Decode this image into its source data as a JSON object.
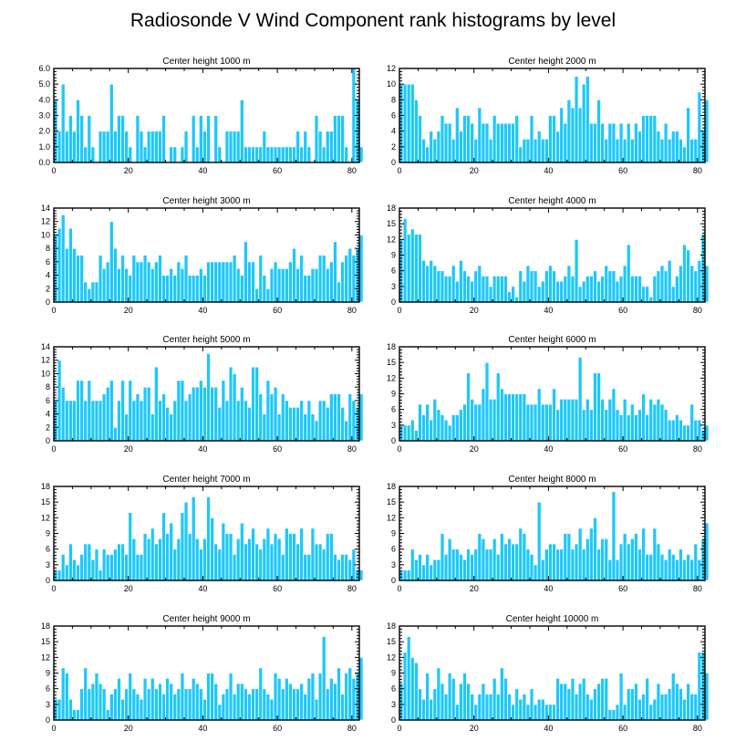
{
  "figure": {
    "title": "Radiosonde V Wind Component rank histograms by level"
  },
  "colors": {
    "bar_fill": "#1ec8f8",
    "bar_edge": "#ffffff",
    "axis": "#000000"
  },
  "chart_data": [
    {
      "type": "bar",
      "title": "Center height 1000 m",
      "xlabel": "",
      "ylabel": "",
      "xlim": [
        0,
        82
      ],
      "ylim": [
        0,
        6
      ],
      "xticks": [
        0,
        20,
        40,
        60,
        80
      ],
      "xtick_labels": [
        "0",
        "20",
        "40",
        "60",
        "80"
      ],
      "yticks": [
        0,
        1,
        2,
        3,
        4,
        5,
        6
      ],
      "ytick_labels": [
        "0.0",
        "1.0",
        "2.0",
        "3.0",
        "4.0",
        "5.0",
        "6.0"
      ],
      "values": [
        4,
        2,
        5,
        2,
        3,
        2,
        4,
        3,
        1,
        3,
        1,
        0,
        2,
        2,
        2,
        5,
        2,
        3,
        3,
        2,
        1,
        0,
        3,
        2,
        1,
        2,
        2,
        2,
        2,
        3,
        0,
        1,
        1,
        0,
        1,
        2,
        0,
        3,
        1,
        3,
        2,
        3,
        0,
        3,
        1,
        0,
        2,
        2,
        2,
        2,
        4,
        1,
        1,
        1,
        1,
        1,
        2,
        1,
        1,
        1,
        1,
        1,
        1,
        1,
        1,
        2,
        1,
        2,
        1,
        0,
        3,
        2,
        1,
        2,
        2,
        3,
        3,
        3,
        1,
        0,
        6,
        4,
        1
      ]
    },
    {
      "type": "bar",
      "title": "Center height 2000 m",
      "xlabel": "",
      "ylabel": "",
      "xlim": [
        0,
        82
      ],
      "ylim": [
        0,
        12
      ],
      "xticks": [
        0,
        20,
        40,
        60,
        80
      ],
      "xtick_labels": [
        "0",
        "20",
        "40",
        "60",
        "80"
      ],
      "yticks": [
        0,
        2,
        4,
        6,
        8,
        10,
        12
      ],
      "ytick_labels": [
        "0",
        "2",
        "4",
        "6",
        "8",
        "10",
        "12"
      ],
      "values": [
        10,
        10,
        10,
        10,
        8,
        6,
        3,
        2,
        4,
        3,
        4,
        6,
        5,
        5,
        3,
        7,
        4,
        6,
        6,
        5,
        3,
        7,
        5,
        5,
        3,
        6,
        5,
        5,
        5,
        5,
        5,
        6,
        2,
        3,
        3,
        6,
        3,
        4,
        3,
        3,
        6,
        6,
        4,
        7,
        5,
        8,
        7,
        11,
        7,
        10,
        11,
        5,
        5,
        8,
        5,
        3,
        5,
        5,
        3,
        5,
        3,
        5,
        3,
        5,
        4,
        6,
        6,
        6,
        6,
        4,
        3,
        5,
        3,
        4,
        4,
        3,
        2,
        7,
        3,
        3,
        9,
        4,
        8
      ]
    },
    {
      "type": "bar",
      "title": "Center height 3000 m",
      "xlabel": "",
      "ylabel": "",
      "xlim": [
        0,
        82
      ],
      "ylim": [
        0,
        14
      ],
      "xticks": [
        0,
        20,
        40,
        60,
        80
      ],
      "xtick_labels": [
        "0",
        "20",
        "40",
        "60",
        "80"
      ],
      "yticks": [
        0,
        2,
        4,
        6,
        8,
        10,
        12,
        14
      ],
      "ytick_labels": [
        "0",
        "2",
        "4",
        "6",
        "8",
        "10",
        "12",
        "14"
      ],
      "values": [
        10,
        11,
        13,
        8,
        11,
        8,
        7,
        7,
        3,
        2,
        3,
        3,
        7,
        5,
        6,
        12,
        8,
        5,
        7,
        5,
        4,
        7,
        6,
        6,
        7,
        6,
        5,
        6,
        7,
        4,
        4,
        5,
        4,
        6,
        5,
        7,
        4,
        4,
        4,
        5,
        4,
        6,
        6,
        6,
        6,
        6,
        6,
        6,
        7,
        5,
        4,
        9,
        6,
        6,
        2,
        7,
        4,
        2,
        5,
        6,
        5,
        5,
        5,
        6,
        8,
        5,
        7,
        4,
        4,
        5,
        5,
        7,
        7,
        5,
        6,
        9,
        3,
        6,
        7,
        8,
        7,
        8,
        10
      ]
    },
    {
      "type": "bar",
      "title": "Center height 4000 m",
      "xlabel": "",
      "ylabel": "",
      "xlim": [
        0,
        82
      ],
      "ylim": [
        0,
        18
      ],
      "xticks": [
        0,
        20,
        40,
        60,
        80
      ],
      "xtick_labels": [
        "0",
        "20",
        "40",
        "60",
        "80"
      ],
      "yticks": [
        0,
        3,
        6,
        9,
        12,
        15,
        18
      ],
      "ytick_labels": [
        "0",
        "3",
        "6",
        "9",
        "12",
        "15",
        "18"
      ],
      "values": [
        12,
        16,
        13,
        14,
        13,
        13,
        8,
        7,
        8,
        7,
        6,
        6,
        5,
        5,
        7,
        4,
        8,
        6,
        5,
        4,
        6,
        7,
        5,
        5,
        3,
        5,
        5,
        5,
        5,
        2,
        3,
        1,
        6,
        4,
        7,
        6,
        6,
        3,
        4,
        6,
        7,
        6,
        4,
        4,
        5,
        7,
        5,
        12,
        3,
        4,
        5,
        5,
        6,
        4,
        5,
        7,
        6,
        6,
        4,
        5,
        7,
        11,
        5,
        5,
        5,
        3,
        3,
        1,
        5,
        6,
        7,
        6,
        8,
        3,
        5,
        7,
        11,
        10,
        7,
        6,
        8,
        13,
        7
      ]
    },
    {
      "type": "bar",
      "title": "Center height 5000 m",
      "xlabel": "",
      "ylabel": "",
      "xlim": [
        0,
        82
      ],
      "ylim": [
        0,
        14
      ],
      "xticks": [
        0,
        20,
        40,
        60,
        80
      ],
      "xtick_labels": [
        "0",
        "20",
        "40",
        "60",
        "80"
      ],
      "yticks": [
        0,
        2,
        4,
        6,
        8,
        10,
        12,
        14
      ],
      "ytick_labels": [
        "0",
        "2",
        "4",
        "6",
        "8",
        "10",
        "12",
        "14"
      ],
      "values": [
        6,
        12,
        8,
        6,
        6,
        6,
        9,
        9,
        6,
        9,
        6,
        6,
        6,
        7,
        8,
        9,
        2,
        6,
        9,
        4,
        9,
        6,
        7,
        6,
        8,
        8,
        4,
        11,
        6,
        7,
        5,
        4,
        6,
        9,
        9,
        6,
        7,
        8,
        8,
        9,
        8,
        13,
        8,
        8,
        5,
        9,
        6,
        11,
        10,
        6,
        8,
        6,
        5,
        11,
        11,
        7,
        4,
        9,
        7,
        8,
        4,
        7,
        6,
        5,
        5,
        5,
        6,
        4,
        6,
        4,
        3,
        6,
        6,
        5,
        7,
        7,
        7,
        5,
        3,
        7,
        6,
        5,
        7
      ]
    },
    {
      "type": "bar",
      "title": "Center height 6000 m",
      "xlabel": "",
      "ylabel": "",
      "xlim": [
        0,
        82
      ],
      "ylim": [
        0,
        18
      ],
      "xticks": [
        0,
        20,
        40,
        60,
        80
      ],
      "xtick_labels": [
        "0",
        "20",
        "40",
        "60",
        "80"
      ],
      "yticks": [
        0,
        3,
        6,
        9,
        12,
        15,
        18
      ],
      "ytick_labels": [
        "0",
        "3",
        "6",
        "9",
        "12",
        "15",
        "18"
      ],
      "values": [
        3,
        3,
        3,
        4,
        2,
        7,
        5,
        7,
        4,
        8,
        6,
        5,
        4,
        3,
        5,
        5,
        6,
        7,
        13,
        8,
        7,
        7,
        10,
        15,
        8,
        8,
        13,
        10,
        9,
        9,
        9,
        9,
        9,
        9,
        7,
        7,
        7,
        10,
        7,
        7,
        7,
        10,
        6,
        8,
        8,
        8,
        8,
        8,
        16,
        6,
        8,
        6,
        13,
        13,
        8,
        6,
        8,
        10,
        6,
        5,
        8,
        5,
        7,
        5,
        6,
        9,
        5,
        8,
        7,
        8,
        7,
        6,
        4,
        4,
        5,
        4,
        3,
        3,
        7,
        4,
        4,
        2,
        3
      ]
    },
    {
      "type": "bar",
      "title": "Center height 7000 m",
      "xlabel": "",
      "ylabel": "",
      "xlim": [
        0,
        82
      ],
      "ylim": [
        0,
        18
      ],
      "xticks": [
        0,
        20,
        40,
        60,
        80
      ],
      "xtick_labels": [
        "0",
        "20",
        "40",
        "60",
        "80"
      ],
      "yticks": [
        0,
        3,
        6,
        9,
        12,
        15,
        18
      ],
      "ytick_labels": [
        "0",
        "3",
        "6",
        "9",
        "12",
        "15",
        "18"
      ],
      "values": [
        2,
        2,
        5,
        3,
        7,
        4,
        3,
        5,
        7,
        7,
        4,
        6,
        2,
        6,
        5,
        5,
        6,
        7,
        7,
        5,
        13,
        8,
        5,
        5,
        9,
        8,
        10,
        7,
        8,
        13,
        9,
        11,
        6,
        8,
        13,
        15,
        9,
        16,
        8,
        6,
        8,
        16,
        12,
        7,
        6,
        11,
        9,
        9,
        5,
        8,
        11,
        7,
        8,
        10,
        7,
        6,
        8,
        10,
        7,
        9,
        8,
        5,
        10,
        9,
        9,
        7,
        10,
        5,
        5,
        10,
        7,
        7,
        6,
        9,
        9,
        5,
        4,
        5,
        5,
        4,
        6,
        2,
        2
      ]
    },
    {
      "type": "bar",
      "title": "Center height 8000 m",
      "xlabel": "",
      "ylabel": "",
      "xlim": [
        0,
        82
      ],
      "ylim": [
        0,
        18
      ],
      "xticks": [
        0,
        20,
        40,
        60,
        80
      ],
      "xtick_labels": [
        "0",
        "20",
        "40",
        "60",
        "80"
      ],
      "yticks": [
        0,
        3,
        6,
        9,
        12,
        15,
        18
      ],
      "ytick_labels": [
        "0",
        "3",
        "6",
        "9",
        "12",
        "15",
        "18"
      ],
      "values": [
        2,
        2,
        2,
        6,
        4,
        5,
        3,
        5,
        3,
        4,
        4,
        9,
        5,
        8,
        6,
        6,
        5,
        4,
        6,
        5,
        6,
        9,
        8,
        6,
        6,
        8,
        5,
        9,
        7,
        8,
        7,
        7,
        10,
        9,
        6,
        5,
        3,
        15,
        4,
        6,
        7,
        7,
        6,
        6,
        9,
        9,
        6,
        7,
        10,
        6,
        8,
        10,
        12,
        6,
        8,
        8,
        4,
        17,
        4,
        7,
        9,
        7,
        8,
        9,
        6,
        10,
        5,
        5,
        10,
        7,
        5,
        4,
        6,
        5,
        4,
        6,
        4,
        5,
        4,
        7,
        4,
        8,
        11
      ]
    },
    {
      "type": "bar",
      "title": "Center height 9000 m",
      "xlabel": "",
      "ylabel": "",
      "xlim": [
        0,
        82
      ],
      "ylim": [
        0,
        18
      ],
      "xticks": [
        0,
        20,
        40,
        60,
        80
      ],
      "xtick_labels": [
        "0",
        "20",
        "40",
        "60",
        "80"
      ],
      "yticks": [
        0,
        3,
        6,
        9,
        12,
        15,
        18
      ],
      "ytick_labels": [
        "0",
        "3",
        "6",
        "9",
        "12",
        "15",
        "18"
      ],
      "values": [
        4,
        4,
        10,
        9,
        4,
        2,
        2,
        6,
        10,
        6,
        7,
        9,
        7,
        6,
        2,
        5,
        6,
        8,
        4,
        6,
        9,
        6,
        5,
        4,
        8,
        6,
        8,
        6,
        7,
        5,
        8,
        7,
        5,
        6,
        9,
        6,
        6,
        8,
        7,
        6,
        4,
        9,
        9,
        7,
        3,
        5,
        6,
        9,
        5,
        7,
        7,
        6,
        5,
        6,
        6,
        10,
        6,
        5,
        4,
        9,
        8,
        6,
        8,
        7,
        6,
        6,
        7,
        5,
        8,
        9,
        4,
        9,
        16,
        6,
        8,
        7,
        10,
        5,
        9,
        10,
        8,
        9,
        12
      ]
    },
    {
      "type": "bar",
      "title": "Center height 10000 m",
      "xlabel": "",
      "ylabel": "",
      "xlim": [
        0,
        82
      ],
      "ylim": [
        0,
        18
      ],
      "xticks": [
        0,
        20,
        40,
        60,
        80
      ],
      "xtick_labels": [
        "0",
        "20",
        "40",
        "60",
        "80"
      ],
      "yticks": [
        0,
        3,
        6,
        9,
        12,
        15,
        18
      ],
      "ytick_labels": [
        "0",
        "3",
        "6",
        "9",
        "12",
        "15",
        "18"
      ],
      "values": [
        7,
        13,
        16,
        12,
        11,
        6,
        4,
        9,
        4,
        6,
        10,
        7,
        5,
        9,
        8,
        3,
        7,
        9,
        7,
        5,
        3,
        5,
        7,
        5,
        5,
        8,
        5,
        10,
        8,
        5,
        3,
        6,
        4,
        5,
        3,
        6,
        3,
        4,
        4,
        3,
        3,
        3,
        8,
        7,
        7,
        6,
        8,
        5,
        7,
        8,
        5,
        4,
        6,
        7,
        8,
        8,
        2,
        2,
        3,
        9,
        3,
        6,
        6,
        7,
        4,
        5,
        8,
        3,
        4,
        7,
        5,
        5,
        6,
        9,
        7,
        6,
        4,
        7,
        5,
        5,
        13,
        13,
        9
      ]
    }
  ]
}
